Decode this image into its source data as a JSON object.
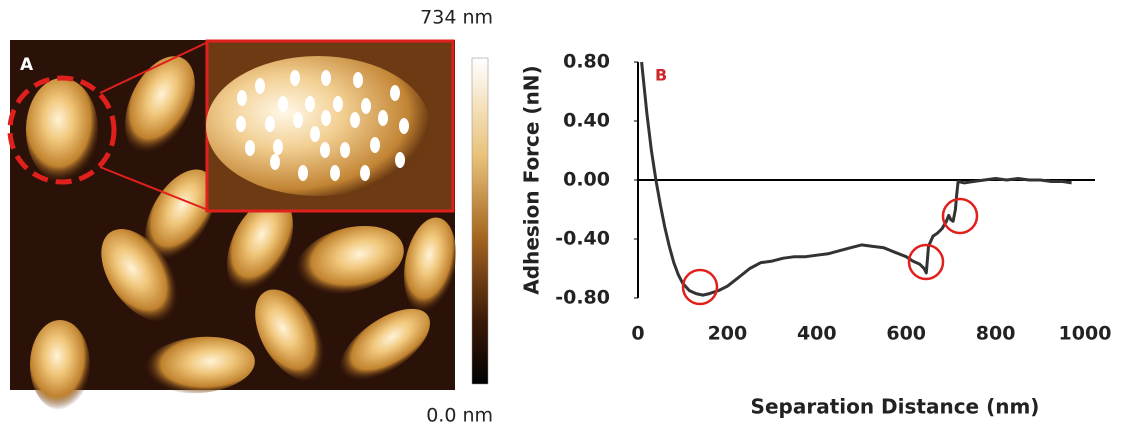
{
  "panel_a": {
    "label": "A",
    "colorbar_max": "734 nm",
    "colorbar_min": "0.0 nm"
  },
  "chart_data": {
    "type": "line",
    "label": "B",
    "y_label": "Adhesion Force (nN)",
    "x_label": "Separation Distance (nm)",
    "color": "#333333",
    "x": [
      8,
      20,
      30,
      40,
      50,
      60,
      70,
      80,
      90,
      100,
      115,
      130,
      145,
      160,
      180,
      200,
      225,
      250,
      275,
      300,
      325,
      350,
      375,
      400,
      425,
      450,
      475,
      500,
      525,
      550,
      575,
      600,
      615,
      630,
      640,
      645,
      650,
      660,
      670,
      680,
      690,
      695,
      700,
      705,
      710,
      713,
      716,
      730,
      750,
      775,
      800,
      825,
      850,
      875,
      900,
      925,
      950,
      970
    ],
    "values": [
      0.8,
      0.45,
      0.2,
      0.0,
      -0.17,
      -0.32,
      -0.45,
      -0.56,
      -0.64,
      -0.7,
      -0.75,
      -0.77,
      -0.78,
      -0.77,
      -0.75,
      -0.72,
      -0.66,
      -0.6,
      -0.56,
      -0.55,
      -0.53,
      -0.52,
      -0.52,
      -0.51,
      -0.5,
      -0.48,
      -0.46,
      -0.44,
      -0.45,
      -0.46,
      -0.49,
      -0.52,
      -0.55,
      -0.57,
      -0.6,
      -0.63,
      -0.45,
      -0.38,
      -0.36,
      -0.33,
      -0.28,
      -0.24,
      -0.27,
      -0.28,
      -0.2,
      -0.1,
      -0.01,
      -0.02,
      -0.01,
      0.0,
      0.01,
      0.0,
      0.01,
      0.0,
      0.0,
      -0.01,
      -0.01,
      -0.02
    ],
    "xlim": [
      0,
      1000
    ],
    "ylim": [
      -0.8,
      0.8
    ],
    "xticks": [
      0,
      200,
      400,
      600,
      800,
      1000
    ],
    "yticks": [
      {
        "value": 0.8,
        "label": "0.80"
      },
      {
        "value": 0.4,
        "label": "0.40"
      },
      {
        "value": 0,
        "label": "0.00"
      },
      {
        "value": -0.4,
        "label": "-0.40"
      },
      {
        "value": -0.8,
        "label": "-0.80"
      }
    ]
  }
}
